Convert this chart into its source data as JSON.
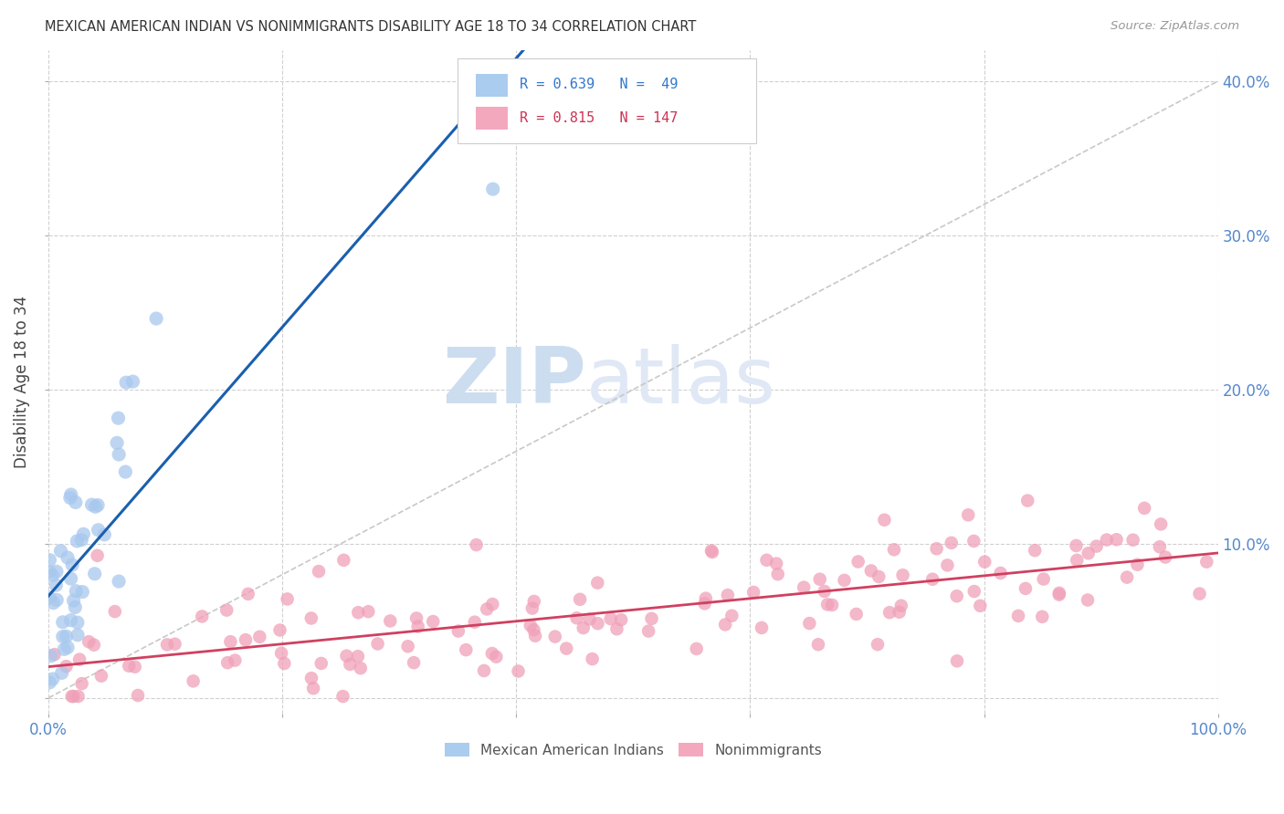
{
  "title": "MEXICAN AMERICAN INDIAN VS NONIMMIGRANTS DISABILITY AGE 18 TO 34 CORRELATION CHART",
  "source": "Source: ZipAtlas.com",
  "ylabel": "Disability Age 18 to 34",
  "xlim": [
    0,
    1.0
  ],
  "ylim": [
    -0.01,
    0.42
  ],
  "blue_R": 0.639,
  "blue_N": 49,
  "pink_R": 0.815,
  "pink_N": 147,
  "blue_color": "#A8C8EE",
  "pink_color": "#F0A0B8",
  "blue_line_color": "#1A5FAE",
  "pink_line_color": "#D04060",
  "diagonal_color": "#C8C8C8",
  "legend_label_blue": "Mexican American Indians",
  "legend_label_pink": "Nonimmigrants",
  "watermark_zip": "ZIP",
  "watermark_atlas": "atlas",
  "background_color": "#FFFFFF",
  "grid_color": "#D0D0D0",
  "tick_color": "#5588CC",
  "axis_label_color": "#444444"
}
